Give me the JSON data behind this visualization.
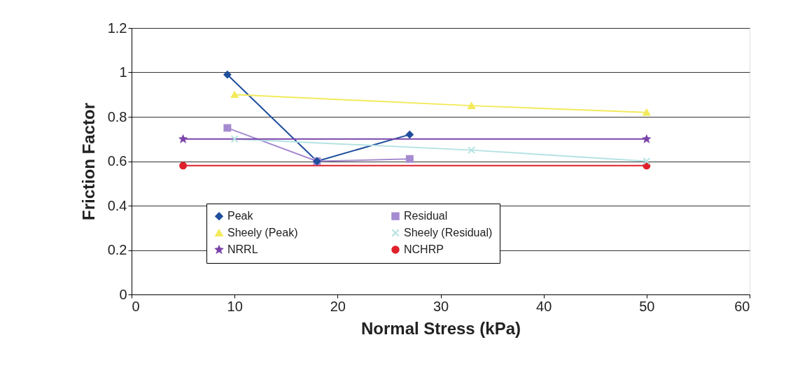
{
  "chart_data": {
    "type": "line",
    "xlabel": "Normal Stress (kPa)",
    "ylabel": "Friction Factor",
    "xlim": [
      0,
      60
    ],
    "xticks": [
      0,
      10,
      20,
      30,
      40,
      50,
      60
    ],
    "ylim": [
      0,
      1.2
    ],
    "yticks": [
      0,
      0.2,
      0.4,
      0.6,
      0.8,
      1,
      1.2
    ],
    "grid": "y",
    "legend": "bottom",
    "line_style": "solid",
    "series": [
      {
        "name": "Peak",
        "color": "#1f4e9c",
        "marker": "diamond",
        "x": [
          9.3,
          18,
          27
        ],
        "values": [
          0.99,
          0.6,
          0.72
        ]
      },
      {
        "name": "Residual",
        "color": "#a58bd0",
        "marker": "square",
        "x": [
          9.3,
          18,
          27
        ],
        "values": [
          0.75,
          0.6,
          0.61
        ]
      },
      {
        "name": "Sheely (Peak)",
        "color": "#f2ea5a",
        "marker": "triangle",
        "x": [
          10,
          33,
          50
        ],
        "values": [
          0.9,
          0.85,
          0.82
        ]
      },
      {
        "name": "Sheely (Residual)",
        "color": "#b5e2e2",
        "marker": "cross",
        "x": [
          10,
          33,
          50
        ],
        "values": [
          0.7,
          0.65,
          0.6
        ]
      },
      {
        "name": "NRRL",
        "color": "#7b44aa",
        "marker": "star",
        "x": [
          5,
          50
        ],
        "values": [
          0.7,
          0.7
        ]
      },
      {
        "name": "NCHRP",
        "color": "#e0202a",
        "marker": "circle",
        "x": [
          5,
          50
        ],
        "values": [
          0.58,
          0.58
        ]
      }
    ]
  }
}
